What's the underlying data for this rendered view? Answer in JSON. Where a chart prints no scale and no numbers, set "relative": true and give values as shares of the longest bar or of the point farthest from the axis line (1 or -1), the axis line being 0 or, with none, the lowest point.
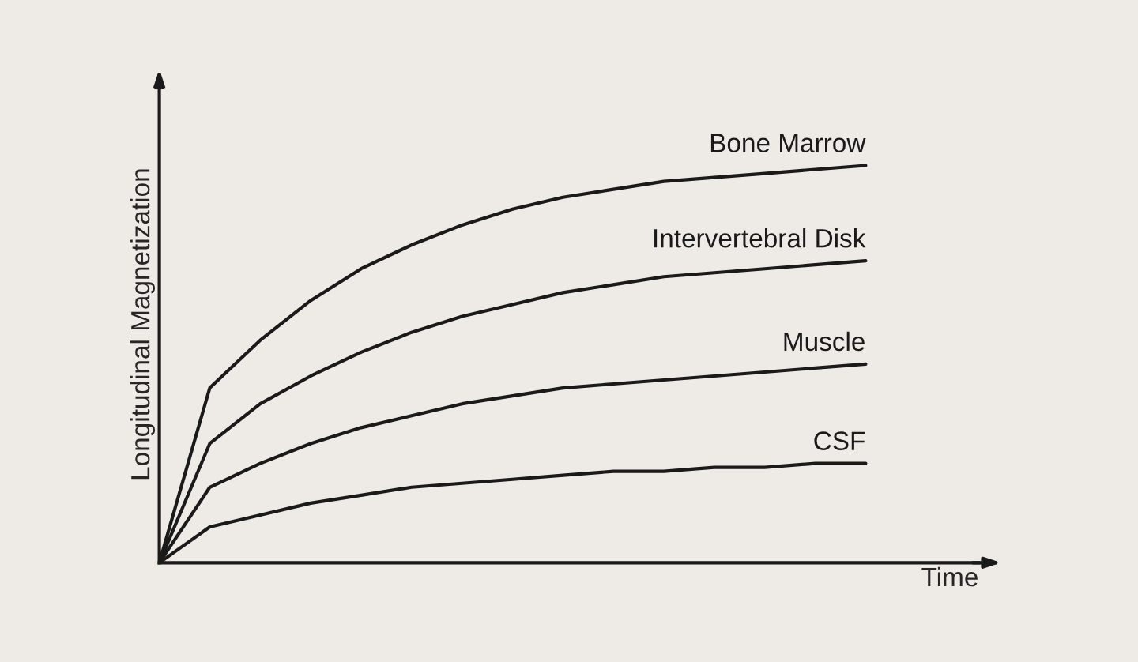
{
  "chart_data": {
    "type": "line",
    "relative": true,
    "xlabel": "Time",
    "ylabel": "Longitudinal Magnetization",
    "tick_labels": false,
    "legend": false,
    "marker": "none",
    "line_style": "solid",
    "categories": [
      null,
      null,
      null,
      null,
      null,
      null,
      null,
      null,
      null,
      null,
      null,
      null,
      null,
      null,
      null
    ],
    "series": [
      {
        "name": "Bone Marrow",
        "color": "#1a1a1a",
        "values": [
          0,
          0.44,
          0.56,
          0.66,
          0.74,
          0.8,
          0.85,
          0.89,
          0.92,
          0.94,
          0.96,
          0.97,
          0.98,
          0.99,
          1
        ]
      },
      {
        "name": "Intervertebral Disk",
        "color": "#1a1a1a",
        "values": [
          0,
          0.3,
          0.4,
          0.47,
          0.53,
          0.58,
          0.62,
          0.65,
          0.68,
          0.7,
          0.72,
          0.73,
          0.74,
          0.75,
          0.76
        ]
      },
      {
        "name": "Muscle",
        "color": "#1a1a1a",
        "values": [
          0,
          0.19,
          0.25,
          0.3,
          0.34,
          0.37,
          0.4,
          0.42,
          0.44,
          0.45,
          0.46,
          0.47,
          0.48,
          0.49,
          0.5
        ]
      },
      {
        "name": "CSF",
        "color": "#1a1a1a",
        "values": [
          0,
          0.09,
          0.12,
          0.15,
          0.17,
          0.19,
          0.2,
          0.21,
          0.22,
          0.23,
          0.23,
          0.24,
          0.24,
          0.25,
          0.25
        ]
      }
    ]
  }
}
